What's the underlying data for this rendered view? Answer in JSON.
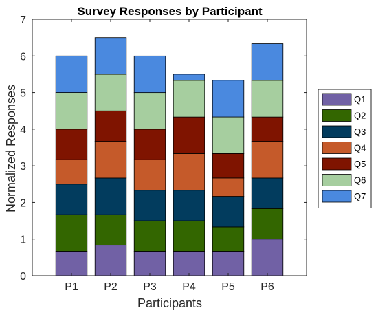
{
  "chart_data": {
    "type": "bar",
    "stacked": true,
    "title": "Survey Responses by Participant",
    "xlabel": "Participants",
    "ylabel": "Normalized Responses",
    "categories": [
      "P1",
      "P2",
      "P3",
      "P4",
      "P5",
      "P6"
    ],
    "ylim": [
      0,
      7
    ],
    "yticks": [
      0,
      1,
      2,
      3,
      4,
      5,
      6,
      7
    ],
    "grid": false,
    "legend_position": "right",
    "series": [
      {
        "name": "Q1",
        "color": "#7161A5",
        "values": [
          0.667,
          0.833,
          0.667,
          0.667,
          0.667,
          1.0
        ]
      },
      {
        "name": "Q2",
        "color": "#336600",
        "values": [
          1.0,
          0.833,
          0.833,
          0.833,
          0.667,
          0.833
        ]
      },
      {
        "name": "Q3",
        "color": "#023C5E",
        "values": [
          0.833,
          1.0,
          0.833,
          0.833,
          0.833,
          0.833
        ]
      },
      {
        "name": "Q4",
        "color": "#C55A2A",
        "values": [
          0.667,
          1.0,
          0.833,
          1.0,
          0.5,
          1.0
        ]
      },
      {
        "name": "Q5",
        "color": "#7F1400",
        "values": [
          0.833,
          0.833,
          0.833,
          1.0,
          0.667,
          0.667
        ]
      },
      {
        "name": "Q6",
        "color": "#A6CE9F",
        "values": [
          1.0,
          1.0,
          1.0,
          1.0,
          1.0,
          1.0
        ]
      },
      {
        "name": "Q7",
        "color": "#4A89DF",
        "values": [
          1.0,
          1.0,
          1.0,
          0.167,
          1.0,
          1.0
        ]
      }
    ]
  }
}
